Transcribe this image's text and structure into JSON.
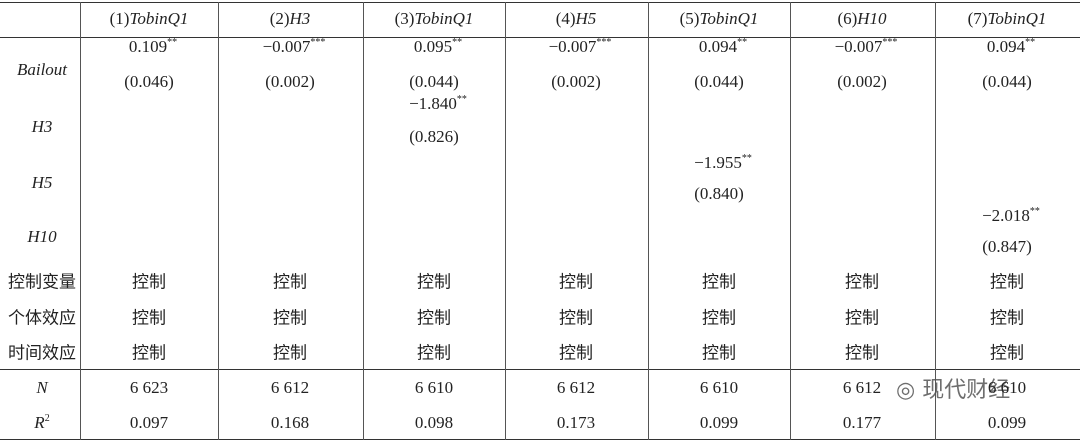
{
  "columns": [
    {
      "num": "(1)",
      "var": "TobinQ1"
    },
    {
      "num": "(2)",
      "var": "H3"
    },
    {
      "num": "(3)",
      "var": "TobinQ1"
    },
    {
      "num": "(4)",
      "var": "H5"
    },
    {
      "num": "(5)",
      "var": "TobinQ1"
    },
    {
      "num": "(6)",
      "var": "H10"
    },
    {
      "num": "(7)",
      "var": "TobinQ1"
    }
  ],
  "coefficients": [
    {
      "label": "Bailout",
      "cells": [
        {
          "coef": "0.109",
          "stars": "**",
          "se": "(0.046)"
        },
        {
          "coef": "−0.007",
          "stars": "***",
          "se": "(0.002)"
        },
        {
          "coef": "0.095",
          "stars": "**",
          "se": "(0.044)"
        },
        {
          "coef": "−0.007",
          "stars": "***",
          "se": "(0.002)"
        },
        {
          "coef": "0.094",
          "stars": "**",
          "se": "(0.044)"
        },
        {
          "coef": "−0.007",
          "stars": "***",
          "se": "(0.002)"
        },
        {
          "coef": "0.094",
          "stars": "**",
          "se": "(0.044)"
        }
      ]
    },
    {
      "label": "H3",
      "cells": [
        null,
        null,
        {
          "coef": "−1.840",
          "stars": "**",
          "se": "(0.826)"
        },
        null,
        null,
        null,
        null
      ]
    },
    {
      "label": "H5",
      "cells": [
        null,
        null,
        null,
        null,
        {
          "coef": "−1.955",
          "stars": "**",
          "se": "(0.840)"
        },
        null,
        null
      ]
    },
    {
      "label": "H10",
      "cells": [
        null,
        null,
        null,
        null,
        null,
        null,
        {
          "coef": "−2.018",
          "stars": "**",
          "se": "(0.847)"
        }
      ]
    }
  ],
  "controls": [
    {
      "label": "控制变量",
      "cells": [
        "控制",
        "控制",
        "控制",
        "控制",
        "控制",
        "控制",
        "控制"
      ]
    },
    {
      "label": "个体效应",
      "cells": [
        "控制",
        "控制",
        "控制",
        "控制",
        "控制",
        "控制",
        "控制"
      ]
    },
    {
      "label": "时间效应",
      "cells": [
        "控制",
        "控制",
        "控制",
        "控制",
        "控制",
        "控制",
        "控制"
      ]
    }
  ],
  "stats": [
    {
      "label": "N",
      "cells": [
        "6 623",
        "6 612",
        "6 610",
        "6 612",
        "6 610",
        "6 612",
        "6 610"
      ]
    },
    {
      "label": "R",
      "sup": "2",
      "cells": [
        "0.097",
        "0.168",
        "0.098",
        "0.173",
        "0.099",
        "0.177",
        "0.099"
      ]
    }
  ],
  "watermark": "现代财经"
}
